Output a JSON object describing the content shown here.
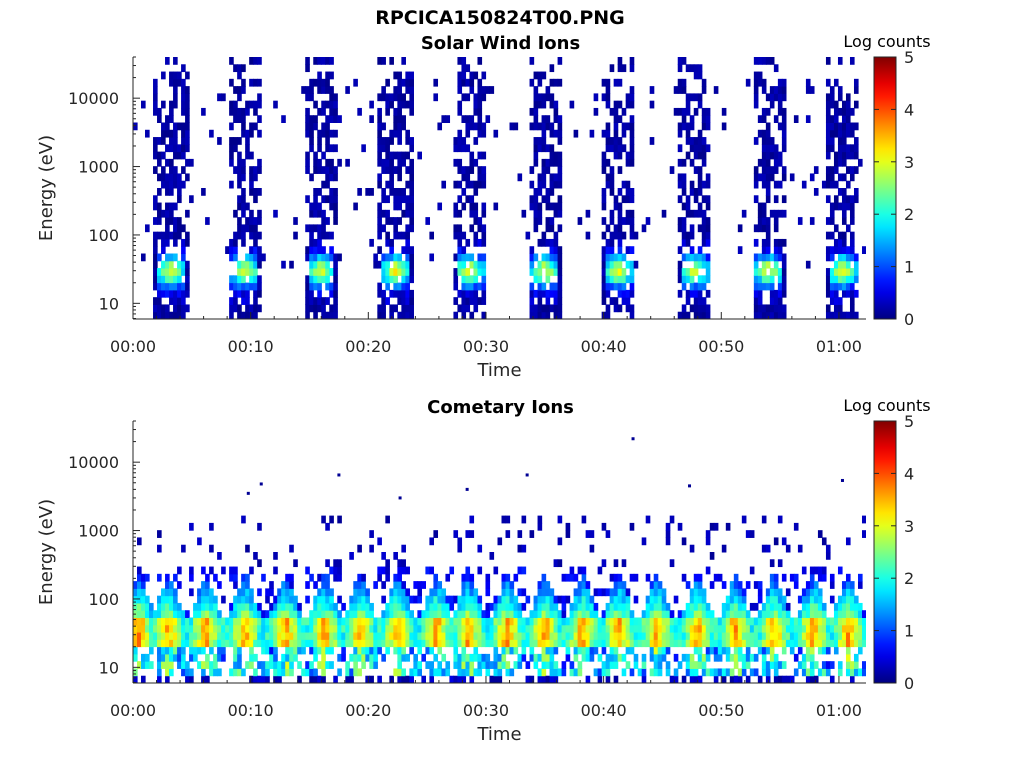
{
  "figure": {
    "title": "RPCICA150824T00.PNG"
  },
  "chart_data": [
    {
      "type": "heatmap",
      "title": "Solar Wind Ions",
      "xlabel": "Time",
      "ylabel": "Energy (eV)",
      "x_ticks": [
        "00:00",
        "00:10",
        "00:20",
        "00:30",
        "00:40",
        "00:50",
        "01:00"
      ],
      "x_range_min": [
        0,
        62.3
      ],
      "y_scale": "log",
      "y_ticks": [
        10,
        100,
        1000,
        10000
      ],
      "y_range_eV": [
        5.9,
        40000
      ],
      "colorbar": {
        "label": "Log counts",
        "ticks": [
          0,
          1,
          2,
          3,
          4,
          5
        ],
        "range": [
          0,
          5
        ],
        "colormap": "jet"
      },
      "sweep_centers_min": [
        3.2,
        9.5,
        16.0,
        22.3,
        28.6,
        35.0,
        41.3,
        47.7,
        54.0,
        60.3
      ],
      "sweep_width_min": 2.8,
      "peak_energy_eV": 30,
      "peak_log_counts": 2.9,
      "background_energy_eV": [
        8,
        20000
      ],
      "background_log_counts": 0.1
    },
    {
      "type": "heatmap",
      "title": "Cometary Ions",
      "xlabel": "Time",
      "ylabel": "Energy (eV)",
      "x_ticks": [
        "00:00",
        "00:10",
        "00:20",
        "00:30",
        "00:40",
        "00:50",
        "01:00"
      ],
      "x_range_min": [
        0,
        62.3
      ],
      "y_scale": "log",
      "y_ticks": [
        10,
        100,
        1000,
        10000
      ],
      "y_range_eV": [
        5.9,
        40000
      ],
      "colorbar": {
        "label": "Log counts",
        "ticks": [
          0,
          1,
          2,
          3,
          4,
          5
        ],
        "range": [
          0,
          5
        ],
        "colormap": "jet"
      },
      "burst_centers_min": [
        0.5,
        3.0,
        6.2,
        9.5,
        13.0,
        16.3,
        19.3,
        22.5,
        25.8,
        28.5,
        31.8,
        35.0,
        38.2,
        41.3,
        44.5,
        48.0,
        51.2,
        54.5,
        57.8,
        60.8
      ],
      "burst_width_min": 2.6,
      "peak_energy_eV": 30,
      "peak_log_counts": 3.6,
      "scatter_energy_eV": [
        200,
        1500
      ],
      "sparse_outliers": [
        {
          "t_min": 9.8,
          "energy_eV": 3500
        },
        {
          "t_min": 10.9,
          "energy_eV": 4800
        },
        {
          "t_min": 17.5,
          "energy_eV": 6500
        },
        {
          "t_min": 22.7,
          "energy_eV": 3000
        },
        {
          "t_min": 28.4,
          "energy_eV": 4000
        },
        {
          "t_min": 33.5,
          "energy_eV": 6500
        },
        {
          "t_min": 42.5,
          "energy_eV": 22000
        },
        {
          "t_min": 47.3,
          "energy_eV": 4500
        },
        {
          "t_min": 60.3,
          "energy_eV": 5400
        }
      ]
    }
  ]
}
